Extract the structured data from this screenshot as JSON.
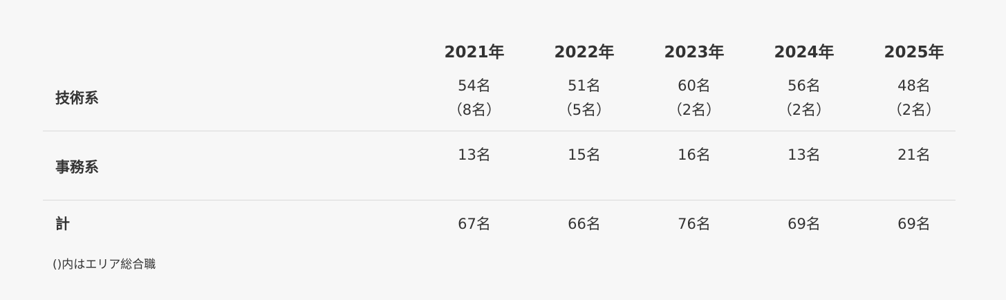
{
  "table": {
    "header": [
      "2021年",
      "2022年",
      "2023年",
      "2024年",
      "2025年"
    ],
    "rows": [
      {
        "label": "技術系",
        "cells": [
          [
            "54名",
            "（8名）"
          ],
          [
            "51名",
            "（5名）"
          ],
          [
            "60名",
            "（2名）"
          ],
          [
            "56名",
            "（2名）"
          ],
          [
            "48名",
            "（2名）"
          ]
        ]
      },
      {
        "label": "事務系",
        "cells": [
          [
            "13名"
          ],
          [
            "15名"
          ],
          [
            "16名"
          ],
          [
            "13名"
          ],
          [
            "21名"
          ]
        ]
      },
      {
        "label": "計",
        "cells": [
          [
            "67名"
          ],
          [
            "66名"
          ],
          [
            "76名"
          ],
          [
            "69名"
          ],
          [
            "69名"
          ]
        ]
      }
    ]
  },
  "note": "()内はエリア総合職"
}
